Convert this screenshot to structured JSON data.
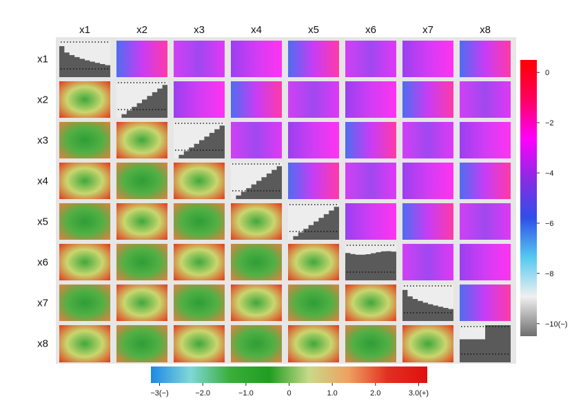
{
  "chart_data": {
    "type": "heatmap",
    "title": "",
    "variables": [
      "x1",
      "x2",
      "x3",
      "x4",
      "x5",
      "x6",
      "x7",
      "x8"
    ],
    "description_of_panels": {
      "lower_triangle": "pairwise heatmaps colored by bottom scale",
      "diagonal": "marginal/cumulative step plots (grey histograms)",
      "upper_triangle": "pairwise heatmaps colored by right scale"
    },
    "right_colorbar": {
      "tick_labels": [
        "0",
        "−2",
        "−4",
        "−6",
        "−8",
        "−10(−)"
      ],
      "tick_values": [
        0,
        -2,
        -4,
        -6,
        -8,
        -10
      ],
      "range": [
        -10.5,
        0.5
      ],
      "colors": [
        "#6e6e6e",
        "#f0f0f0",
        "#55c8f0",
        "#2f4fe8",
        "#8a2be2",
        "#ff00ff",
        "#ff0060",
        "#ff0000"
      ]
    },
    "bottom_colorbar": {
      "tick_labels": [
        "−3(−)",
        "−2.0",
        "−1.0",
        "0",
        "1.0",
        "2.0",
        "3.0(+)"
      ],
      "tick_values": [
        -3,
        -2,
        -1,
        0,
        1,
        2,
        3
      ],
      "range": [
        -3.2,
        3.2
      ],
      "colors": [
        "#1e88e5",
        "#7fd8d8",
        "#3aae3a",
        "#1f9e1f",
        "#c8d98a",
        "#f0a060",
        "#e03020",
        "#e01010"
      ]
    }
  }
}
